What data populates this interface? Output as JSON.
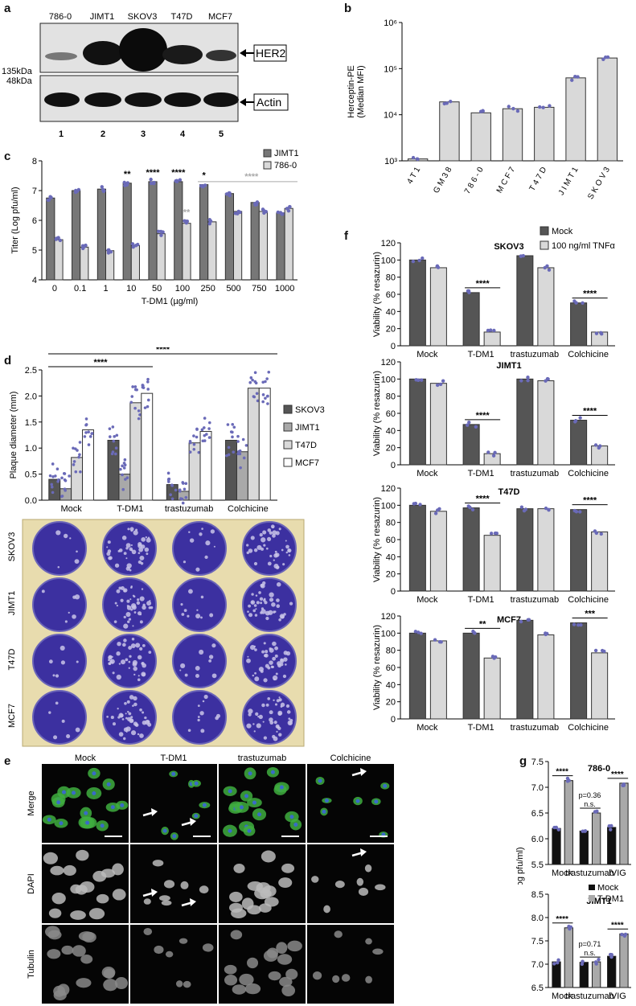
{
  "panels": {
    "a": {
      "label": "a",
      "lanes": [
        "786-0",
        "JIMT1",
        "SKOV3",
        "T47D",
        "MCF7"
      ],
      "lane_numbers": [
        "1",
        "2",
        "3",
        "4",
        "5"
      ],
      "bands": [
        "HER2",
        "Actin"
      ],
      "markers": [
        "135kDa",
        "48kDa"
      ]
    },
    "b": {
      "label": "b"
    },
    "c": {
      "label": "c"
    },
    "d": {
      "label": "d",
      "rows": [
        "SKOV3",
        "JIMT1",
        "T47D",
        "MCF7"
      ],
      "cols": [
        "Mock",
        "T-DM1",
        "trastuzumab",
        "Colchicine"
      ]
    },
    "e": {
      "label": "e",
      "cols": [
        "Mock",
        "T-DM1",
        "trastuzumab",
        "Colchicine"
      ],
      "rows": [
        "Merge",
        "DAPI",
        "Tubulin"
      ]
    },
    "f": {
      "label": "f"
    },
    "g": {
      "label": "g"
    }
  },
  "colors": {
    "dark_bar": "#555555",
    "light_bar": "#d9d9d9",
    "point": "#6a6ab8",
    "plate": "#3c30a0",
    "green_cell": "#3fae3f"
  },
  "chart_data": [
    {
      "id": "b",
      "type": "bar",
      "scale": "log",
      "ylabel": "Herceptin-PE\n(Median MFI)",
      "ylim": [
        1000,
        1000000
      ],
      "yticks": [
        "10³",
        "10⁴",
        "10⁵",
        "10⁶"
      ],
      "categories": [
        "4T1",
        "GM38",
        "786-0",
        "MCF7",
        "T47D",
        "JIMT1",
        "SKOV3"
      ],
      "category_labels": [
        "4 T 1",
        "G M 3 8",
        "7 8 6 - 0",
        "M C F 7",
        "T 4 7 D",
        "J I M T 1",
        "S K O V 3"
      ],
      "values": [
        1100,
        19000,
        11000,
        13500,
        14500,
        63000,
        170000
      ]
    },
    {
      "id": "c",
      "type": "bar",
      "xlabel": "T-DM1 (µg/ml)",
      "ylabel": "Titer (Log pfu/ml)",
      "ylim": [
        4,
        8
      ],
      "yticks": [
        "4",
        "5",
        "6",
        "7",
        "8"
      ],
      "categories": [
        "0",
        "0.1",
        "1",
        "10",
        "50",
        "100",
        "250",
        "500",
        "750",
        "1000"
      ],
      "series": [
        {
          "name": "JIMT1",
          "values": [
            6.75,
            7.0,
            7.05,
            7.25,
            7.3,
            7.3,
            7.2,
            6.9,
            6.6,
            6.25
          ]
        },
        {
          "name": "786-0",
          "values": [
            5.35,
            5.1,
            4.98,
            5.15,
            5.55,
            5.9,
            5.95,
            6.3,
            6.3,
            6.4
          ]
        }
      ],
      "annotations": [
        "**",
        "****",
        "****",
        "*",
        "**",
        "****"
      ]
    },
    {
      "id": "d",
      "type": "bar",
      "ylabel": "Plaque diameter (mm)",
      "ylim": [
        0,
        2.5
      ],
      "yticks": [
        "0.0",
        "0.5",
        "1.0",
        "1.5",
        "2.0",
        "2.5"
      ],
      "categories": [
        "Mock",
        "T-DM1",
        "trastuzumab",
        "Colchicine"
      ],
      "series": [
        {
          "name": "SKOV3",
          "values": [
            0.4,
            1.15,
            0.3,
            1.15
          ]
        },
        {
          "name": "JIMT1",
          "values": [
            0.22,
            0.5,
            0.17,
            0.93
          ]
        },
        {
          "name": "T47D",
          "values": [
            0.82,
            1.87,
            1.1,
            2.15
          ]
        },
        {
          "name": "MCF7",
          "values": [
            1.35,
            2.05,
            1.32,
            2.15
          ]
        }
      ],
      "annotations": [
        "****",
        "****"
      ]
    },
    {
      "id": "f1",
      "type": "bar",
      "title": "SKOV3",
      "ylabel": "Viability (% resazurin)",
      "ylim": [
        0,
        120
      ],
      "yticks": [
        "0",
        "20",
        "40",
        "60",
        "80",
        "100",
        "120"
      ],
      "categories": [
        "Mock",
        "T-DM1",
        "trastuzumab",
        "Colchicine"
      ],
      "series": [
        {
          "name": "Mock",
          "values": [
            100,
            62,
            105,
            50
          ]
        },
        {
          "name": "100 ng/ml TNFα",
          "values": [
            91,
            16,
            91,
            16
          ]
        }
      ],
      "annotations": [
        "****",
        "****"
      ]
    },
    {
      "id": "f2",
      "type": "bar",
      "title": "JIMT1",
      "ylabel": "Viability (% resazurin)",
      "ylim": [
        0,
        120
      ],
      "yticks": [
        "0",
        "20",
        "40",
        "60",
        "80",
        "100",
        "120"
      ],
      "categories": [
        "Mock",
        "T-DM1",
        "trastuzumab",
        "Colchicine"
      ],
      "series": [
        {
          "name": "Mock",
          "values": [
            100,
            47,
            100,
            52
          ]
        },
        {
          "name": "100 ng/ml TNFα",
          "values": [
            95,
            13,
            98,
            22
          ]
        }
      ],
      "annotations": [
        "****",
        "****"
      ]
    },
    {
      "id": "f3",
      "type": "bar",
      "title": "T47D",
      "ylabel": "Viability (% resazurin)",
      "ylim": [
        0,
        120
      ],
      "yticks": [
        "0",
        "20",
        "40",
        "60",
        "80",
        "100",
        "120"
      ],
      "categories": [
        "Mock",
        "T-DM1",
        "trastuzumab",
        "Colchicine"
      ],
      "series": [
        {
          "name": "Mock",
          "values": [
            100,
            97,
            96,
            95
          ]
        },
        {
          "name": "100 ng/ml TNFα",
          "values": [
            93,
            65,
            96,
            69
          ]
        }
      ],
      "annotations": [
        "****",
        "****"
      ]
    },
    {
      "id": "f4",
      "type": "bar",
      "title": "MCF7",
      "ylabel": "Viability (% resazurin)",
      "ylim": [
        0,
        120
      ],
      "yticks": [
        "0",
        "20",
        "40",
        "60",
        "80",
        "100",
        "120"
      ],
      "categories": [
        "Mock",
        "T-DM1",
        "trastuzumab",
        "Colchicine"
      ],
      "series": [
        {
          "name": "Mock",
          "values": [
            100,
            100,
            115,
            112
          ]
        },
        {
          "name": "100 ng/ml TNFα",
          "values": [
            91,
            71,
            98,
            77
          ]
        }
      ],
      "annotations": [
        "**",
        "***"
      ]
    },
    {
      "id": "g1",
      "type": "bar",
      "title": "786-0",
      "ylabel": "Titer (Log pfu/ml)",
      "ylim": [
        5.5,
        7.5
      ],
      "yticks": [
        "5.5",
        "6.0",
        "6.5",
        "7.0",
        "7.5"
      ],
      "categories": [
        "Mock",
        "trastuzumab",
        "IVIG"
      ],
      "series": [
        {
          "name": "Mock",
          "values": [
            6.2,
            6.15,
            6.22
          ]
        },
        {
          "name": "T-DM1",
          "values": [
            7.13,
            6.5,
            7.08
          ]
        }
      ],
      "annotations": [
        "****",
        "p=0.36",
        "n.s.",
        "****"
      ]
    },
    {
      "id": "g2",
      "type": "bar",
      "title": "JIMT1",
      "ylabel": "Titer (Log pfu/ml)",
      "ylim": [
        6.5,
        8.5
      ],
      "yticks": [
        "6.5",
        "7.0",
        "7.5",
        "8.0",
        "8.5"
      ],
      "categories": [
        "Mock",
        "trastuzumab",
        "IVIG"
      ],
      "series": [
        {
          "name": "Mock",
          "values": [
            7.05,
            7.04,
            7.17
          ]
        },
        {
          "name": "T-DM1",
          "values": [
            7.78,
            7.05,
            7.65
          ]
        }
      ],
      "annotations": [
        "****",
        "p=0.71",
        "n.s.",
        "****"
      ]
    }
  ]
}
